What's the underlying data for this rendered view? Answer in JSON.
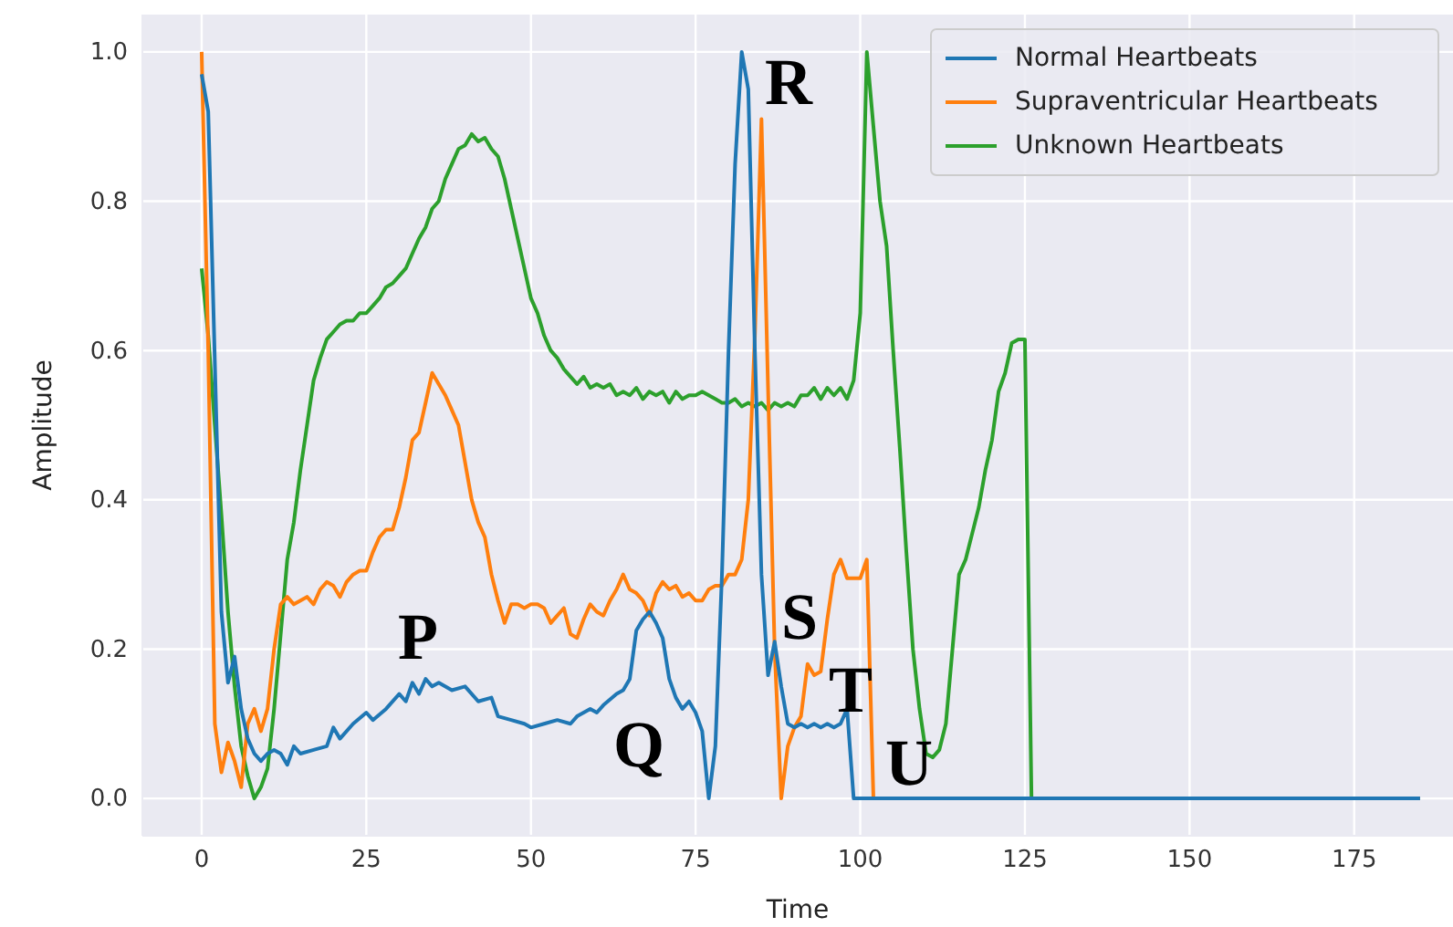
{
  "chart_data": {
    "type": "line",
    "xlabel": "Time",
    "ylabel": "Amplitude",
    "xlim": [
      -9,
      190
    ],
    "ylim": [
      -0.05,
      1.05
    ],
    "xticks": [
      0,
      25,
      50,
      75,
      100,
      125,
      150,
      175
    ],
    "yticks": [
      {
        "value": 0,
        "label": "0.0"
      },
      0.2,
      0.4,
      0.6,
      0.8,
      {
        "value": 1,
        "label": "1.0"
      }
    ],
    "grid": true,
    "legend": "top right",
    "series": [
      {
        "name": "Normal Heartbeats",
        "color": "#1f77b4",
        "x": [
          0,
          1,
          3,
          4,
          5,
          6,
          7,
          8,
          9,
          10,
          11,
          12,
          13,
          14,
          15,
          17,
          19,
          20,
          21,
          23,
          25,
          26,
          28,
          30,
          31,
          32,
          33,
          34,
          35,
          36,
          38,
          40,
          42,
          44,
          45,
          47,
          49,
          50,
          52,
          54,
          56,
          57,
          59,
          60,
          61,
          63,
          64,
          65,
          66,
          67,
          68,
          69,
          70,
          71,
          72,
          73,
          74,
          75,
          76,
          77,
          78,
          79,
          80,
          81,
          82,
          83,
          84,
          85,
          86,
          87,
          88,
          89,
          90,
          91,
          92,
          93,
          94,
          95,
          96,
          97,
          98,
          99,
          185
        ],
        "values": [
          0.97,
          0.92,
          0.25,
          0.155,
          0.19,
          0.12,
          0.08,
          0.06,
          0.05,
          0.06,
          0.065,
          0.06,
          0.045,
          0.07,
          0.06,
          0.065,
          0.07,
          0.095,
          0.08,
          0.1,
          0.115,
          0.105,
          0.12,
          0.14,
          0.13,
          0.155,
          0.14,
          0.16,
          0.15,
          0.155,
          0.145,
          0.15,
          0.13,
          0.135,
          0.11,
          0.105,
          0.1,
          0.095,
          0.1,
          0.105,
          0.1,
          0.11,
          0.12,
          0.115,
          0.125,
          0.14,
          0.145,
          0.16,
          0.225,
          0.24,
          0.25,
          0.235,
          0.215,
          0.16,
          0.135,
          0.12,
          0.13,
          0.115,
          0.09,
          0.0,
          0.07,
          0.3,
          0.6,
          0.85,
          1.0,
          0.95,
          0.6,
          0.3,
          0.165,
          0.21,
          0.15,
          0.1,
          0.095,
          0.1,
          0.095,
          0.1,
          0.095,
          0.1,
          0.095,
          0.1,
          0.12,
          0.0,
          0.0
        ]
      },
      {
        "name": "Supraventricular Heartbeats",
        "color": "#ff7f0e",
        "x": [
          0,
          1,
          2,
          3,
          4,
          5,
          6,
          7,
          8,
          9,
          10,
          11,
          12,
          13,
          14,
          15,
          16,
          17,
          18,
          19,
          20,
          21,
          22,
          23,
          24,
          25,
          26,
          27,
          28,
          29,
          30,
          31,
          32,
          33,
          34,
          35,
          36,
          37,
          38,
          39,
          40,
          41,
          42,
          43,
          44,
          45,
          46,
          47,
          48,
          49,
          50,
          51,
          52,
          53,
          54,
          55,
          56,
          57,
          58,
          59,
          60,
          61,
          62,
          63,
          64,
          65,
          66,
          67,
          68,
          69,
          70,
          71,
          72,
          73,
          74,
          75,
          76,
          77,
          78,
          79,
          80,
          81,
          82,
          83,
          84,
          85,
          86,
          87,
          88,
          89,
          90,
          91,
          92,
          93,
          94,
          95,
          96,
          97,
          98,
          99,
          100,
          101,
          102,
          185
        ],
        "values": [
          1.0,
          0.6,
          0.1,
          0.035,
          0.075,
          0.05,
          0.015,
          0.1,
          0.12,
          0.09,
          0.12,
          0.2,
          0.26,
          0.27,
          0.26,
          0.265,
          0.27,
          0.26,
          0.28,
          0.29,
          0.285,
          0.27,
          0.29,
          0.3,
          0.305,
          0.305,
          0.33,
          0.35,
          0.36,
          0.36,
          0.39,
          0.43,
          0.48,
          0.49,
          0.53,
          0.57,
          0.555,
          0.54,
          0.52,
          0.5,
          0.45,
          0.4,
          0.37,
          0.35,
          0.3,
          0.265,
          0.235,
          0.26,
          0.26,
          0.255,
          0.26,
          0.26,
          0.255,
          0.235,
          0.245,
          0.255,
          0.22,
          0.215,
          0.24,
          0.26,
          0.25,
          0.245,
          0.265,
          0.28,
          0.3,
          0.28,
          0.275,
          0.265,
          0.245,
          0.275,
          0.29,
          0.28,
          0.285,
          0.27,
          0.275,
          0.265,
          0.265,
          0.28,
          0.285,
          0.285,
          0.3,
          0.3,
          0.32,
          0.4,
          0.62,
          0.91,
          0.55,
          0.2,
          0.0,
          0.07,
          0.095,
          0.11,
          0.18,
          0.165,
          0.17,
          0.24,
          0.3,
          0.32,
          0.295,
          0.295,
          0.295,
          0.32,
          0.0,
          0.0
        ]
      },
      {
        "name": "Unknown Heartbeats",
        "color": "#2ca02c",
        "x": [
          0,
          1,
          2,
          3,
          4,
          5,
          6,
          7,
          8,
          9,
          10,
          11,
          12,
          13,
          14,
          15,
          16,
          17,
          18,
          19,
          20,
          21,
          22,
          23,
          24,
          25,
          26,
          27,
          28,
          29,
          30,
          31,
          32,
          33,
          34,
          35,
          36,
          37,
          38,
          39,
          40,
          41,
          42,
          43,
          44,
          45,
          46,
          47,
          48,
          49,
          50,
          51,
          52,
          53,
          54,
          55,
          56,
          57,
          58,
          59,
          60,
          61,
          62,
          63,
          64,
          65,
          66,
          67,
          68,
          69,
          70,
          71,
          72,
          73,
          74,
          75,
          76,
          77,
          78,
          79,
          80,
          81,
          82,
          83,
          84,
          85,
          86,
          87,
          88,
          89,
          90,
          91,
          92,
          93,
          94,
          95,
          96,
          97,
          98,
          99,
          100,
          101,
          102,
          103,
          104,
          105,
          106,
          107,
          108,
          109,
          110,
          111,
          112,
          113,
          114,
          115,
          116,
          117,
          118,
          119,
          120,
          121,
          122,
          123,
          124,
          125,
          126,
          185
        ],
        "values": [
          0.71,
          0.62,
          0.5,
          0.38,
          0.25,
          0.15,
          0.07,
          0.03,
          0.0,
          0.015,
          0.04,
          0.12,
          0.22,
          0.32,
          0.37,
          0.44,
          0.5,
          0.56,
          0.59,
          0.615,
          0.625,
          0.635,
          0.64,
          0.64,
          0.65,
          0.65,
          0.66,
          0.67,
          0.685,
          0.69,
          0.7,
          0.71,
          0.73,
          0.75,
          0.765,
          0.79,
          0.8,
          0.83,
          0.85,
          0.87,
          0.875,
          0.89,
          0.88,
          0.885,
          0.87,
          0.86,
          0.83,
          0.79,
          0.75,
          0.71,
          0.67,
          0.65,
          0.62,
          0.6,
          0.59,
          0.575,
          0.565,
          0.555,
          0.565,
          0.55,
          0.555,
          0.55,
          0.555,
          0.54,
          0.545,
          0.54,
          0.55,
          0.535,
          0.545,
          0.54,
          0.545,
          0.53,
          0.545,
          0.535,
          0.54,
          0.54,
          0.545,
          0.54,
          0.535,
          0.53,
          0.53,
          0.535,
          0.525,
          0.53,
          0.525,
          0.53,
          0.52,
          0.53,
          0.525,
          0.53,
          0.525,
          0.54,
          0.54,
          0.55,
          0.535,
          0.55,
          0.54,
          0.55,
          0.535,
          0.56,
          0.65,
          1.0,
          0.9,
          0.8,
          0.74,
          0.6,
          0.47,
          0.33,
          0.2,
          0.12,
          0.06,
          0.055,
          0.065,
          0.1,
          0.2,
          0.3,
          0.32,
          0.355,
          0.39,
          0.44,
          0.48,
          0.545,
          0.57,
          0.61,
          0.615,
          0.615,
          0.0,
          0.0
        ]
      }
    ],
    "annotations": [
      "P",
      "Q",
      "R",
      "S",
      "T",
      "U"
    ]
  }
}
